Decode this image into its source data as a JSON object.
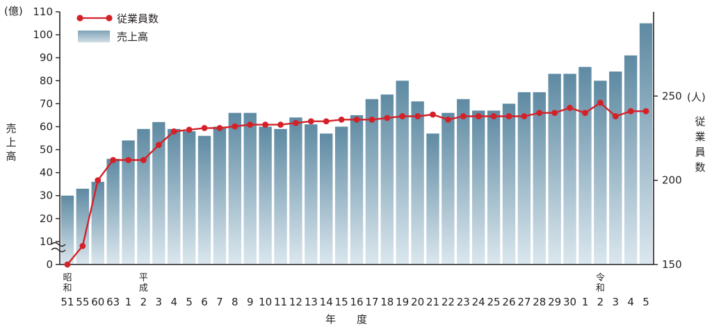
{
  "chart_data": {
    "type": "bar+line",
    "left_axis": {
      "label": "売上高",
      "unit": "(億)",
      "ticks": [
        0,
        10,
        20,
        30,
        40,
        50,
        60,
        70,
        80,
        90,
        100,
        110
      ],
      "range": [
        0,
        110
      ],
      "broken": true
    },
    "right_axis": {
      "label": "従業員数",
      "unit": "(人)",
      "ticks": [
        150,
        200,
        250
      ],
      "range": [
        150,
        300
      ]
    },
    "x_axis_label": "年　　度",
    "era_labels": [
      {
        "text": "昭和",
        "at_index": 0
      },
      {
        "text": "平成",
        "at_index": 5
      },
      {
        "text": "令和",
        "at_index": 35
      }
    ],
    "categories": [
      "51",
      "55",
      "60",
      "63",
      "1",
      "2",
      "3",
      "4",
      "5",
      "6",
      "7",
      "8",
      "9",
      "10",
      "11",
      "12",
      "13",
      "14",
      "15",
      "16",
      "17",
      "18",
      "19",
      "20",
      "21",
      "22",
      "23",
      "24",
      "25",
      "26",
      "27",
      "28",
      "29",
      "30",
      "1",
      "2",
      "3",
      "4",
      "5"
    ],
    "series": [
      {
        "name": "従業員数",
        "axis": "right",
        "type": "line",
        "color": "#d42128",
        "values": [
          150,
          161,
          200,
          212,
          212,
          212,
          221,
          229,
          230,
          231,
          231,
          232,
          233,
          233,
          233,
          234,
          235,
          235,
          236,
          236,
          236,
          237,
          238,
          238,
          239,
          236,
          238,
          238,
          238,
          238,
          238,
          240,
          240,
          243,
          240,
          246,
          238,
          241,
          241
        ]
      },
      {
        "name": "売上高",
        "axis": "left",
        "type": "bar",
        "color": "#6f98ae",
        "values": [
          30,
          33,
          36,
          46,
          54,
          59,
          62,
          59,
          58,
          56,
          60,
          66,
          66,
          60,
          59,
          64,
          61,
          57,
          60,
          65,
          72,
          74,
          80,
          71,
          57,
          66,
          72,
          67,
          67,
          70,
          75,
          75,
          83,
          83,
          86,
          80,
          84,
          91,
          105
        ]
      }
    ],
    "legend": {
      "placement": "top-left"
    }
  }
}
